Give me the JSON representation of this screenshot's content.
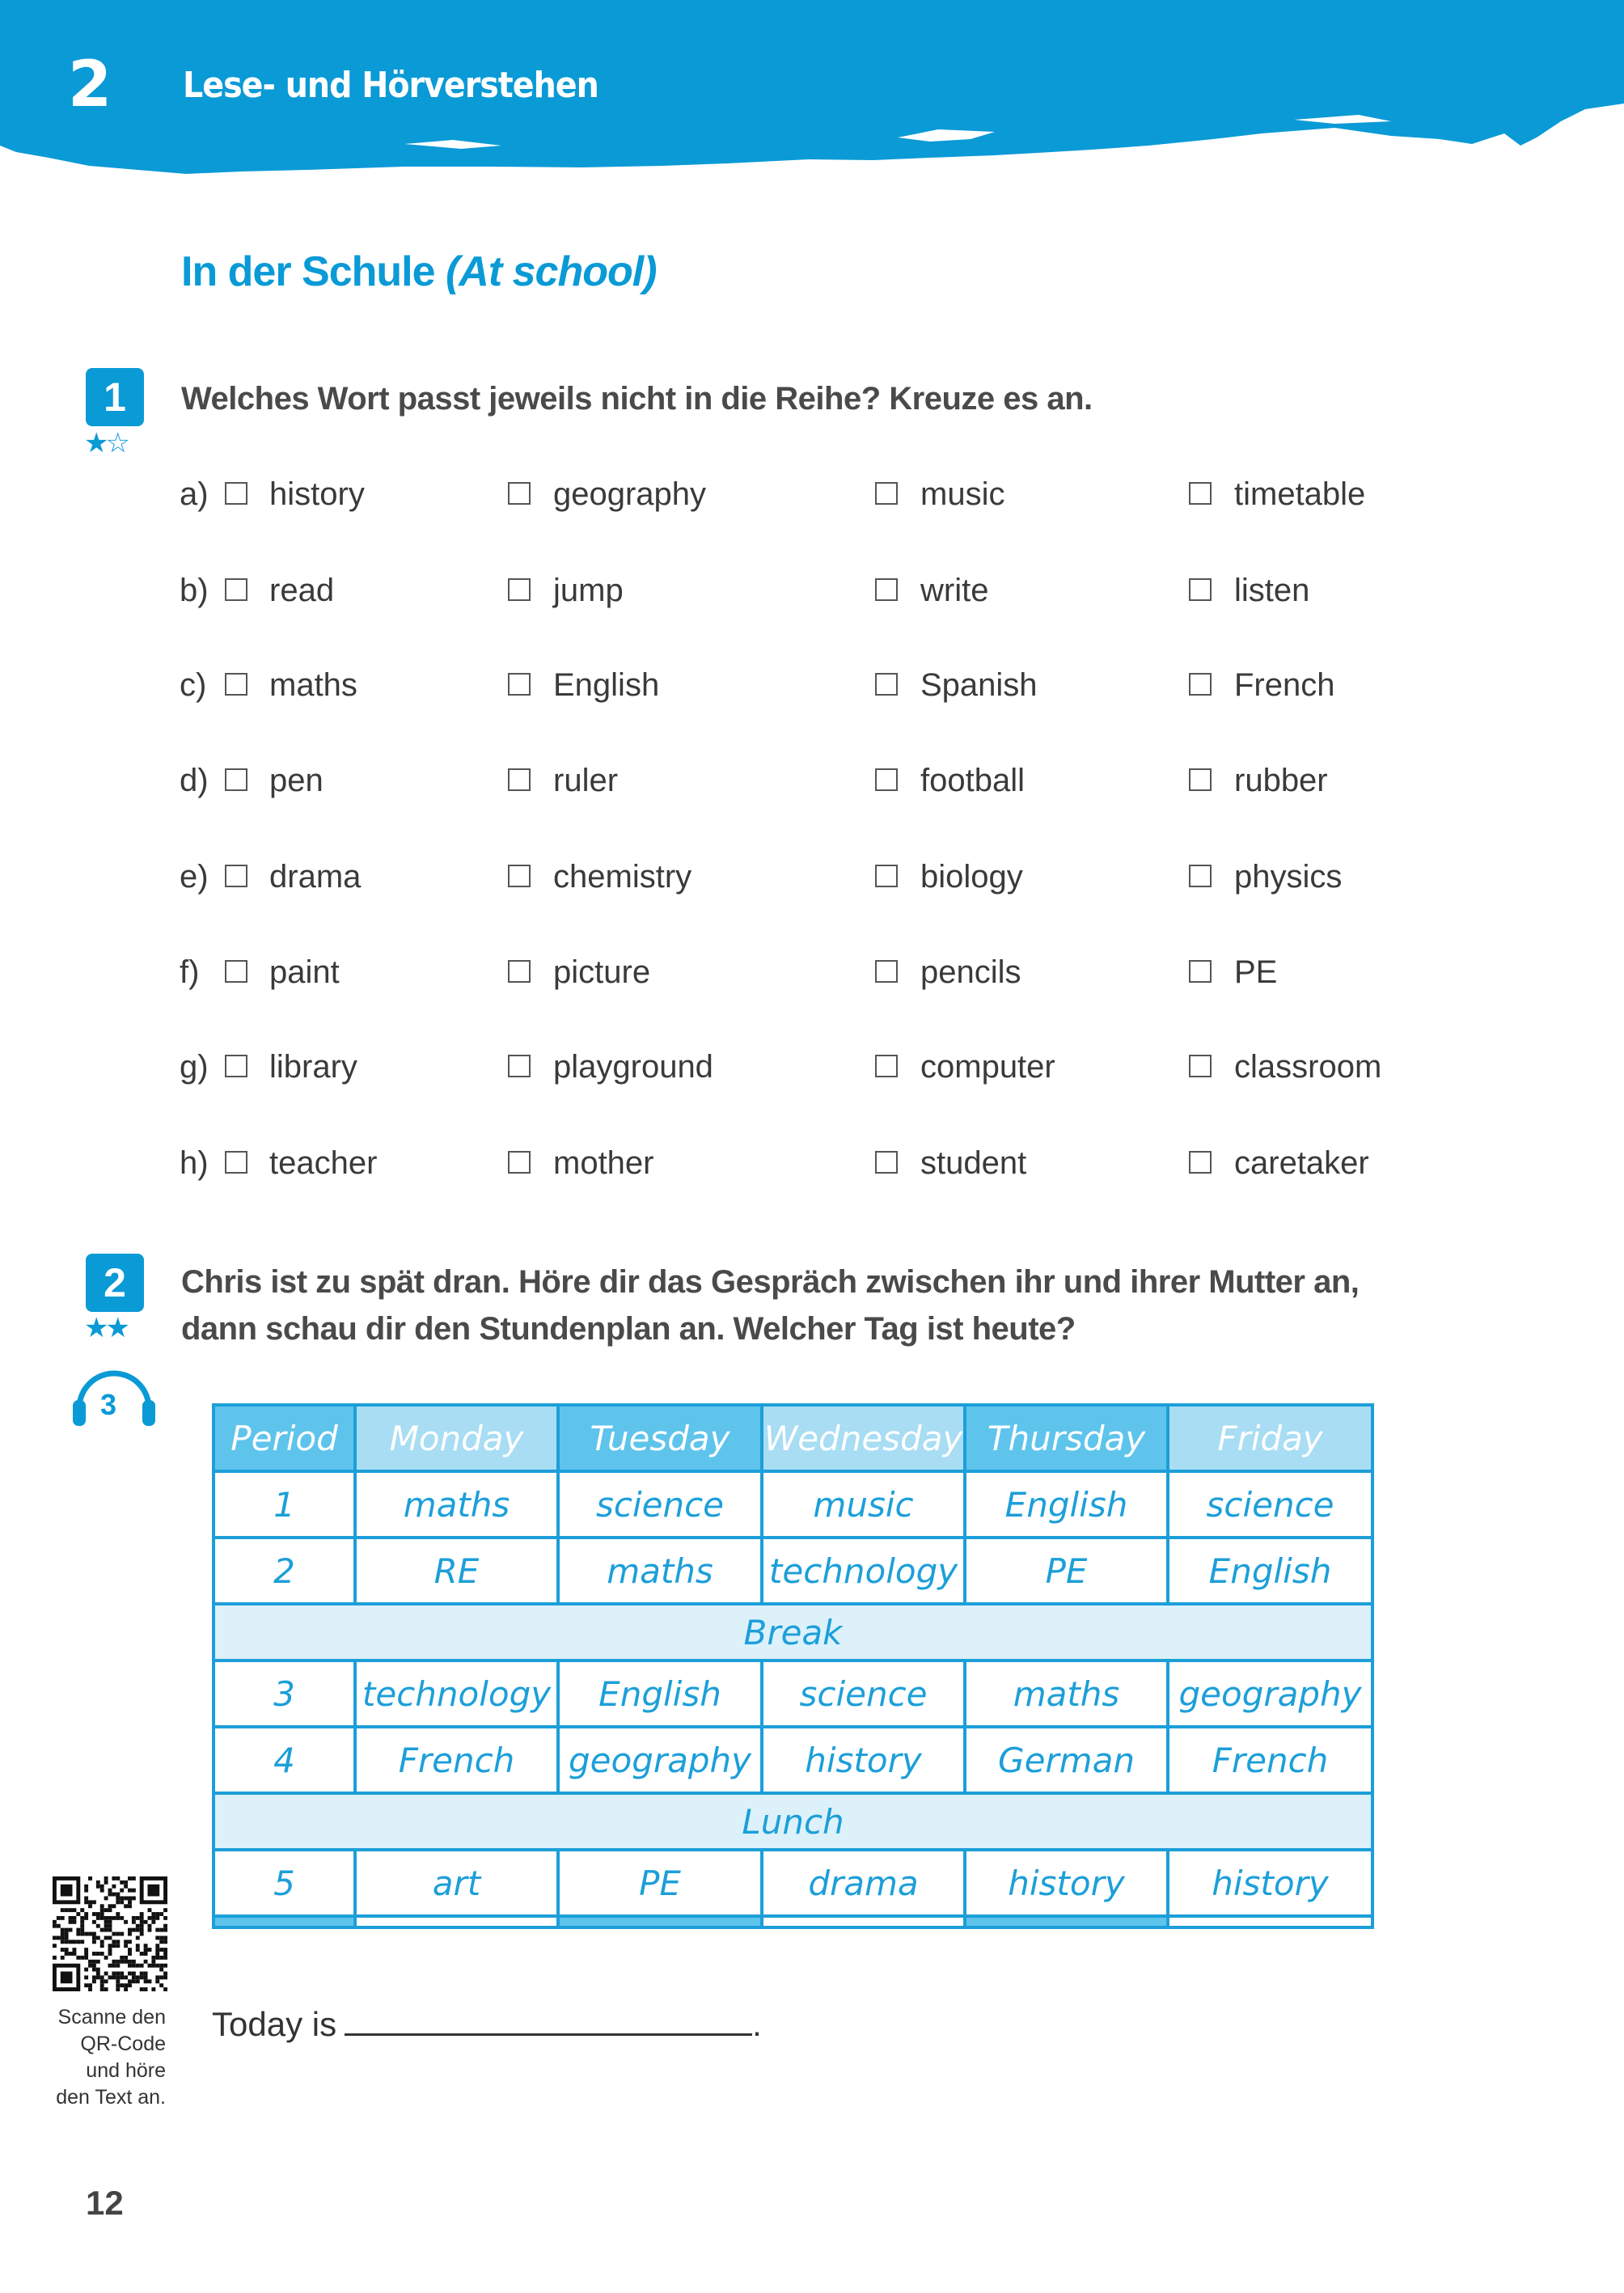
{
  "header": {
    "chapter_number": "2",
    "chapter_title": "Lese- und Hörverstehen",
    "color": "#0a9ad6"
  },
  "section": {
    "title": "In der Schule",
    "title_en": "(At school)"
  },
  "exercise1": {
    "number": "1",
    "stars": "★☆",
    "instruction": "Welches Wort passt jeweils nicht in die Reihe? Kreuze es an.",
    "rows": [
      {
        "letter": "a)",
        "words": [
          "history",
          "geography",
          "music",
          "timetable"
        ]
      },
      {
        "letter": "b)",
        "words": [
          "read",
          "jump",
          "write",
          "listen"
        ]
      },
      {
        "letter": "c)",
        "words": [
          "maths",
          "English",
          "Spanish",
          "French"
        ]
      },
      {
        "letter": "d)",
        "words": [
          "pen",
          "ruler",
          "football",
          "rubber"
        ]
      },
      {
        "letter": "e)",
        "words": [
          "drama",
          "chemistry",
          "biology",
          "physics"
        ]
      },
      {
        "letter": "f)",
        "words": [
          "paint",
          "picture",
          "pencils",
          "PE"
        ]
      },
      {
        "letter": "g)",
        "words": [
          "library",
          "playground",
          "computer",
          "classroom"
        ]
      },
      {
        "letter": "h)",
        "words": [
          "teacher",
          "mother",
          "student",
          "caretaker"
        ]
      }
    ]
  },
  "exercise2": {
    "number": "2",
    "stars": "★★",
    "audio_track": "3",
    "instruction_line1": "Chris ist zu spät dran. Höre dir das Gespräch zwischen ihr und ihrer Mutter an,",
    "instruction_line2": "dann schau dir den Stundenplan an. Welcher Tag ist heute?",
    "timetable": {
      "headers": [
        "Period",
        "Monday",
        "Tuesday",
        "Wednesday",
        "Thursday",
        "Friday"
      ],
      "rows": [
        [
          "1",
          "maths",
          "science",
          "music",
          "English",
          "science"
        ],
        [
          "2",
          "RE",
          "maths",
          "technology",
          "PE",
          "English"
        ],
        [
          "3",
          "technology",
          "English",
          "science",
          "maths",
          "geography"
        ],
        [
          "4",
          "French",
          "geography",
          "history",
          "German",
          "French"
        ],
        [
          "5",
          "art",
          "PE",
          "drama",
          "history",
          "history"
        ]
      ],
      "break_label": "Break",
      "lunch_label": "Lunch"
    },
    "answer_prompt": "Today is",
    "answer_end": "."
  },
  "qr": {
    "caption_lines": [
      "Scanne den",
      "QR-Code",
      "und höre",
      "den Text an."
    ]
  },
  "page_number": "12"
}
